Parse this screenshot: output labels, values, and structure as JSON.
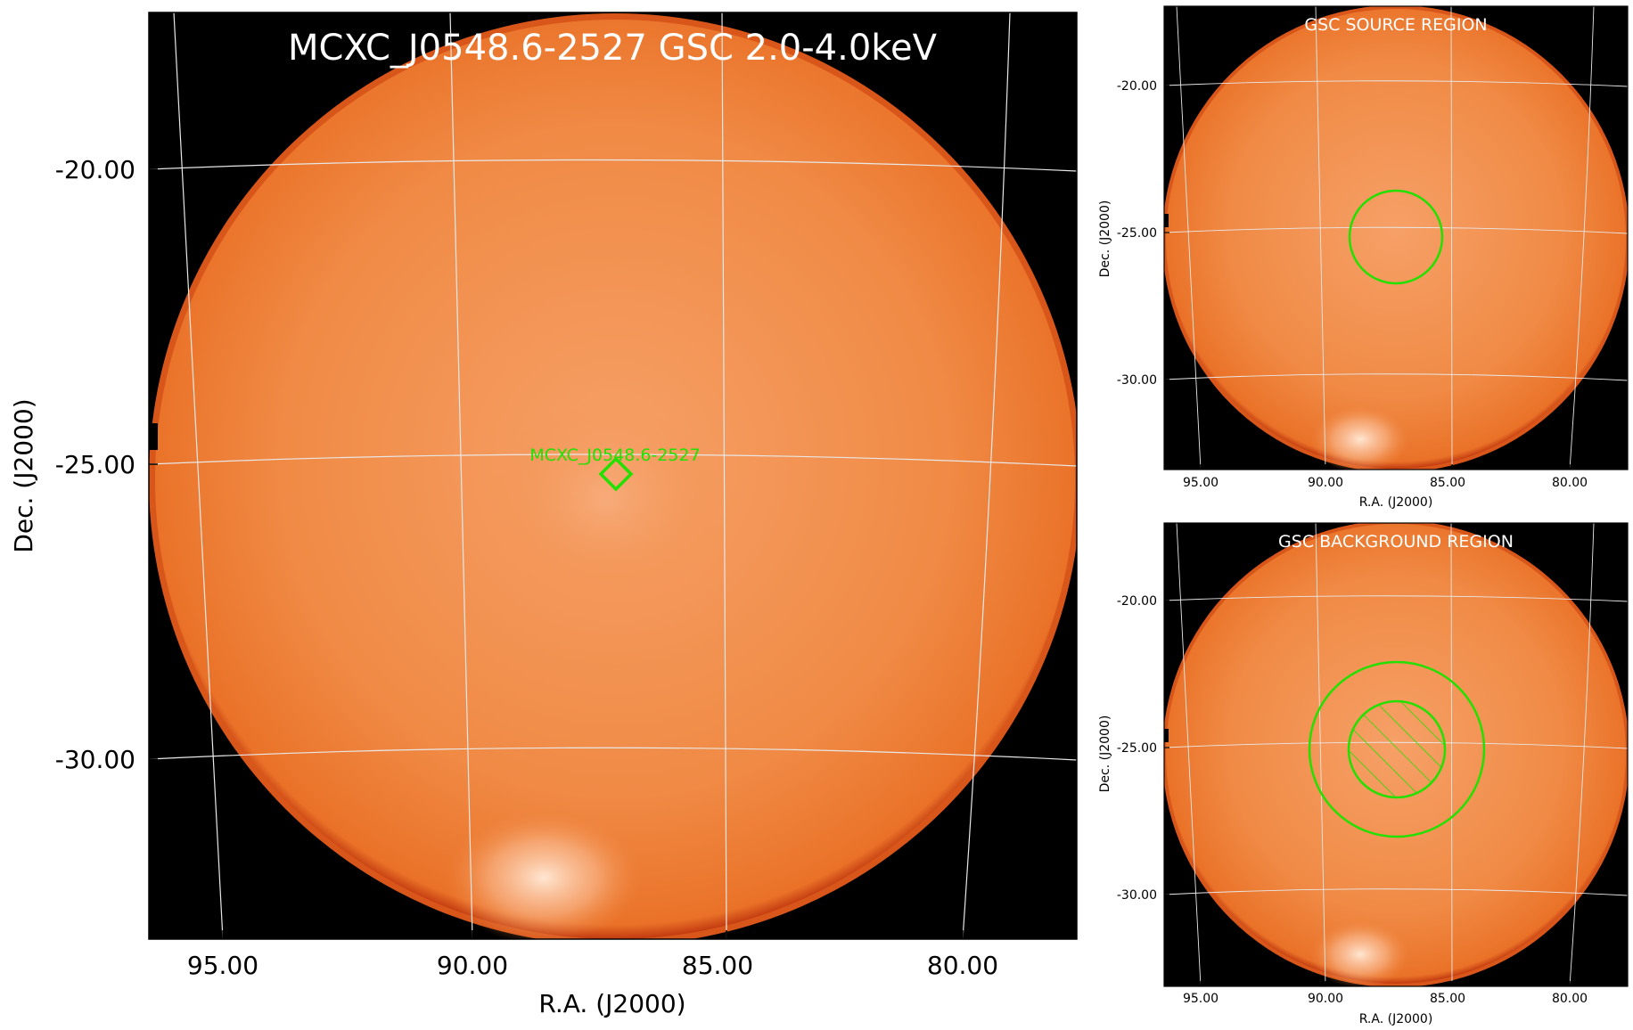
{
  "main_panel": {
    "title": "MCXC_J0548.6-2527 GSC 2.0-4.0keV",
    "source_label": "MCXC_J0548.6-2527",
    "xlabel": "R.A. (J2000)",
    "ylabel": "Dec. (J2000)",
    "xticks": [
      "95.00",
      "90.00",
      "85.00",
      "80.00"
    ],
    "yticks": [
      "-20.00",
      "-25.00",
      "-30.00"
    ]
  },
  "source_panel": {
    "title": "GSC SOURCE REGION",
    "xlabel": "R.A. (J2000)",
    "ylabel": "Dec. (J2000)",
    "xticks": [
      "95.00",
      "90.00",
      "85.00",
      "80.00"
    ],
    "yticks": [
      "-20.00",
      "-25.00",
      "-30.00"
    ]
  },
  "background_panel": {
    "title": "GSC BACKGROUND REGION",
    "xlabel": "R.A. (J2000)",
    "ylabel": "Dec. (J2000)",
    "xticks": [
      "95.00",
      "90.00",
      "85.00",
      "80.00"
    ],
    "yticks": [
      "-20.00",
      "-25.00",
      "-30.00"
    ]
  },
  "colors": {
    "image_fill": "#ef7f2e",
    "region": "#22e000",
    "grid": "#e8e8e8",
    "title_text": "#ffffff",
    "background": "#000000"
  }
}
